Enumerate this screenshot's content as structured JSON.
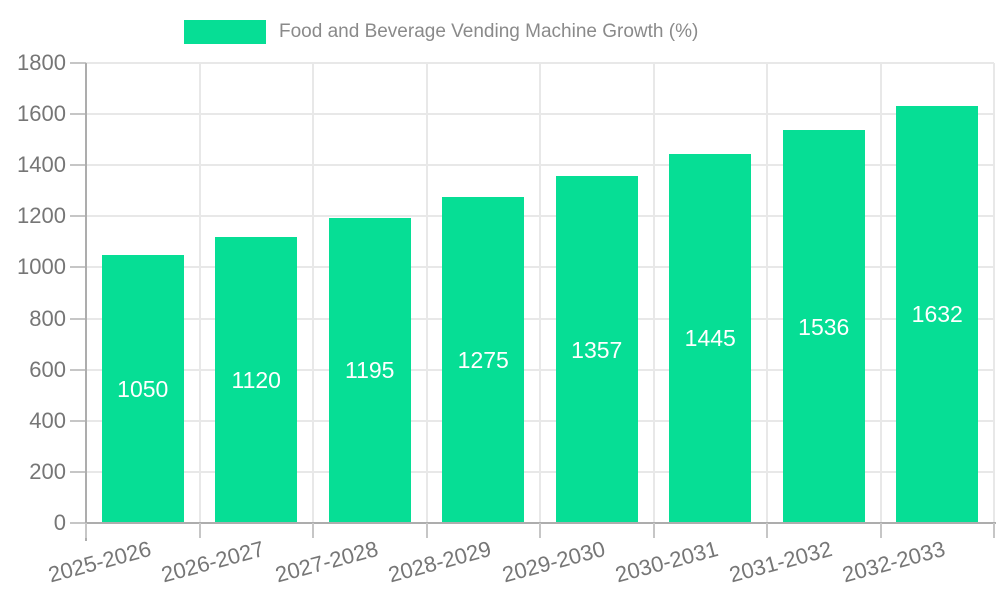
{
  "chart_data": {
    "type": "bar",
    "title": "",
    "legend_label": "Food and Beverage Vending Machine Growth (%)",
    "legend_position": "top",
    "categories": [
      "2025-2026",
      "2026-2027",
      "2027-2028",
      "2028-2029",
      "2029-2030",
      "2030-2031",
      "2031-2032",
      "2032-2033"
    ],
    "values": [
      1050,
      1120,
      1195,
      1275,
      1357,
      1445,
      1536,
      1632
    ],
    "xlabel": "",
    "ylabel": "",
    "ylim": [
      0,
      1800
    ],
    "ytick_step": 200,
    "yticks": [
      0,
      200,
      400,
      600,
      800,
      1000,
      1200,
      1400,
      1600,
      1800
    ],
    "grid": "horizontal-and-vertical",
    "value_labels": "inside-center-white",
    "colors": {
      "bar": "#06DE95",
      "gridline": "#E8E8E8",
      "axis_line": "#ADADAD",
      "tick": "#C6C6C6",
      "axis_text": "#767676",
      "legend_text": "#8A8A8A",
      "value_text": "#FFFFFF",
      "background": "#FFFFFF"
    }
  }
}
